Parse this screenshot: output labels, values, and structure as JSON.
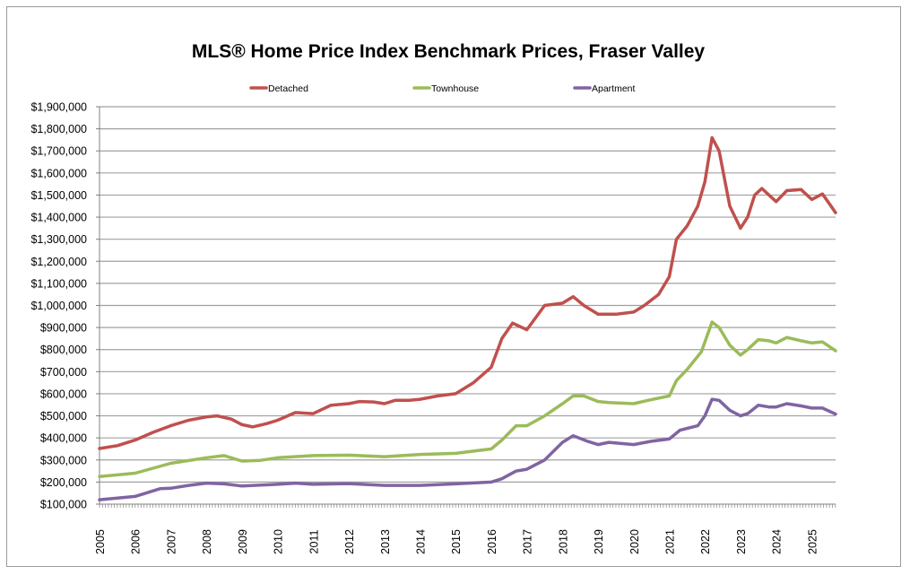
{
  "chart_data": {
    "type": "line",
    "title": "MLS® Home Price Index Benchmark Prices, Fraser Valley",
    "xlabel": "",
    "ylabel": "",
    "xlim": [
      2005,
      2025.67
    ],
    "ylim": [
      100000,
      1900000
    ],
    "y_tick_step": 100000,
    "y_tick_labels": [
      "$100,000",
      "$200,000",
      "$300,000",
      "$400,000",
      "$500,000",
      "$600,000",
      "$700,000",
      "$800,000",
      "$900,000",
      "$1,000,000",
      "$1,100,000",
      "$1,200,000",
      "$1,300,000",
      "$1,400,000",
      "$1,500,000",
      "$1,600,000",
      "$1,700,000",
      "$1,800,000",
      "$1,900,000"
    ],
    "x_tick_labels": [
      "2005",
      "2006",
      "2007",
      "2008",
      "2009",
      "2010",
      "2011",
      "2012",
      "2013",
      "2014",
      "2015",
      "2016",
      "2017",
      "2018",
      "2019",
      "2020",
      "2021",
      "2022",
      "2023",
      "2024",
      "2025"
    ],
    "grid": "horizontal",
    "legend_position": "top-center",
    "series": [
      {
        "name": "Detached",
        "color": "#c0504d",
        "points": [
          [
            2005,
            352000
          ],
          [
            2005.5,
            365000
          ],
          [
            2006,
            390000
          ],
          [
            2006.5,
            425000
          ],
          [
            2007,
            455000
          ],
          [
            2007.5,
            480000
          ],
          [
            2008,
            495000
          ],
          [
            2008.3,
            500000
          ],
          [
            2008.7,
            485000
          ],
          [
            2009,
            460000
          ],
          [
            2009.3,
            450000
          ],
          [
            2009.7,
            465000
          ],
          [
            2010,
            480000
          ],
          [
            2010.5,
            515000
          ],
          [
            2011,
            510000
          ],
          [
            2011.5,
            548000
          ],
          [
            2012,
            555000
          ],
          [
            2012.3,
            565000
          ],
          [
            2012.7,
            563000
          ],
          [
            2013,
            555000
          ],
          [
            2013.3,
            570000
          ],
          [
            2013.7,
            570000
          ],
          [
            2014,
            575000
          ],
          [
            2014.5,
            590000
          ],
          [
            2015,
            600000
          ],
          [
            2015.5,
            650000
          ],
          [
            2016,
            720000
          ],
          [
            2016.3,
            850000
          ],
          [
            2016.6,
            920000
          ],
          [
            2017,
            890000
          ],
          [
            2017.5,
            1000000
          ],
          [
            2018,
            1010000
          ],
          [
            2018.3,
            1040000
          ],
          [
            2018.6,
            1000000
          ],
          [
            2019,
            960000
          ],
          [
            2019.5,
            960000
          ],
          [
            2020,
            970000
          ],
          [
            2020.3,
            1000000
          ],
          [
            2020.7,
            1050000
          ],
          [
            2021,
            1130000
          ],
          [
            2021.2,
            1300000
          ],
          [
            2021.5,
            1360000
          ],
          [
            2021.8,
            1450000
          ],
          [
            2022,
            1560000
          ],
          [
            2022.2,
            1760000
          ],
          [
            2022.4,
            1700000
          ],
          [
            2022.7,
            1450000
          ],
          [
            2023,
            1350000
          ],
          [
            2023.2,
            1400000
          ],
          [
            2023.4,
            1500000
          ],
          [
            2023.6,
            1530000
          ],
          [
            2024,
            1470000
          ],
          [
            2024.3,
            1520000
          ],
          [
            2024.7,
            1525000
          ],
          [
            2025,
            1480000
          ],
          [
            2025.3,
            1505000
          ],
          [
            2025.5,
            1460000
          ],
          [
            2025.67,
            1420000
          ]
        ]
      },
      {
        "name": "Townhouse",
        "color": "#9bbb59",
        "points": [
          [
            2005,
            225000
          ],
          [
            2006,
            240000
          ],
          [
            2007,
            285000
          ],
          [
            2008,
            310000
          ],
          [
            2008.5,
            320000
          ],
          [
            2009,
            295000
          ],
          [
            2009.5,
            298000
          ],
          [
            2010,
            310000
          ],
          [
            2011,
            320000
          ],
          [
            2012,
            322000
          ],
          [
            2013,
            315000
          ],
          [
            2014,
            325000
          ],
          [
            2015,
            330000
          ],
          [
            2015.5,
            340000
          ],
          [
            2016,
            350000
          ],
          [
            2016.3,
            390000
          ],
          [
            2016.7,
            455000
          ],
          [
            2017,
            455000
          ],
          [
            2017.5,
            500000
          ],
          [
            2018,
            555000
          ],
          [
            2018.3,
            590000
          ],
          [
            2018.6,
            590000
          ],
          [
            2019,
            565000
          ],
          [
            2019.3,
            560000
          ],
          [
            2020,
            555000
          ],
          [
            2020.4,
            570000
          ],
          [
            2021,
            590000
          ],
          [
            2021.2,
            660000
          ],
          [
            2021.5,
            710000
          ],
          [
            2021.9,
            790000
          ],
          [
            2022.2,
            925000
          ],
          [
            2022.4,
            900000
          ],
          [
            2022.7,
            820000
          ],
          [
            2023,
            775000
          ],
          [
            2023.2,
            800000
          ],
          [
            2023.5,
            845000
          ],
          [
            2023.8,
            840000
          ],
          [
            2024,
            830000
          ],
          [
            2024.3,
            855000
          ],
          [
            2024.7,
            840000
          ],
          [
            2025,
            830000
          ],
          [
            2025.3,
            835000
          ],
          [
            2025.67,
            795000
          ]
        ]
      },
      {
        "name": "Apartment",
        "color": "#8064a2",
        "points": [
          [
            2005,
            120000
          ],
          [
            2006,
            135000
          ],
          [
            2006.7,
            170000
          ],
          [
            2007,
            172000
          ],
          [
            2007.5,
            185000
          ],
          [
            2008,
            195000
          ],
          [
            2008.5,
            192000
          ],
          [
            2009,
            182000
          ],
          [
            2010,
            190000
          ],
          [
            2010.5,
            195000
          ],
          [
            2011,
            190000
          ],
          [
            2012,
            193000
          ],
          [
            2013,
            185000
          ],
          [
            2014,
            185000
          ],
          [
            2015,
            192000
          ],
          [
            2016,
            200000
          ],
          [
            2016.3,
            215000
          ],
          [
            2016.7,
            250000
          ],
          [
            2017,
            258000
          ],
          [
            2017.5,
            300000
          ],
          [
            2018,
            380000
          ],
          [
            2018.3,
            410000
          ],
          [
            2018.7,
            385000
          ],
          [
            2019,
            370000
          ],
          [
            2019.3,
            380000
          ],
          [
            2020,
            370000
          ],
          [
            2020.5,
            385000
          ],
          [
            2021,
            395000
          ],
          [
            2021.3,
            435000
          ],
          [
            2021.8,
            455000
          ],
          [
            2022,
            500000
          ],
          [
            2022.2,
            575000
          ],
          [
            2022.4,
            570000
          ],
          [
            2022.7,
            525000
          ],
          [
            2023,
            500000
          ],
          [
            2023.2,
            510000
          ],
          [
            2023.5,
            548000
          ],
          [
            2023.8,
            540000
          ],
          [
            2024,
            540000
          ],
          [
            2024.3,
            555000
          ],
          [
            2024.7,
            545000
          ],
          [
            2025,
            535000
          ],
          [
            2025.3,
            535000
          ],
          [
            2025.67,
            508000
          ]
        ]
      }
    ]
  }
}
